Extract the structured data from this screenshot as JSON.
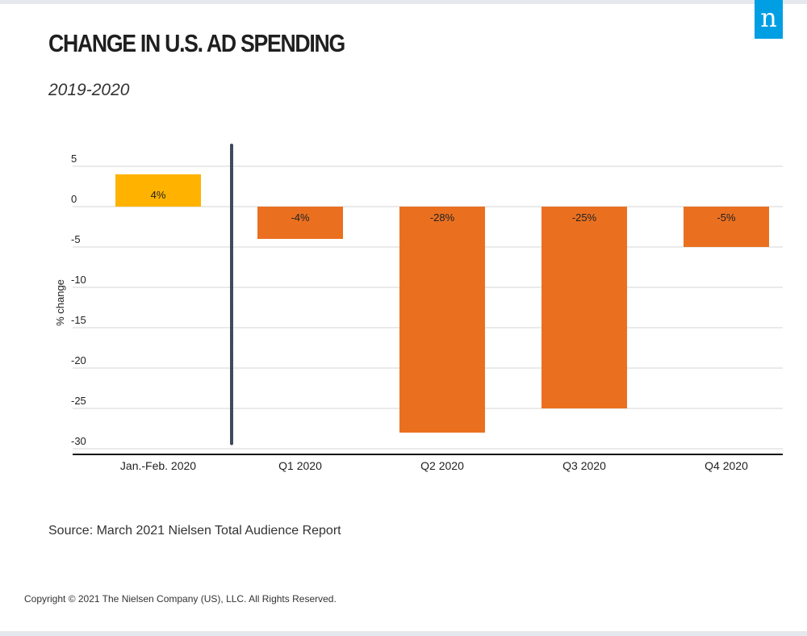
{
  "brand": {
    "logo_text": "n",
    "logo_color": "#009ee3"
  },
  "header": {
    "title": "CHANGE IN U.S. AD SPENDING",
    "subtitle": "2019-2020"
  },
  "chart_data": {
    "type": "bar",
    "categories": [
      "Jan.-Feb. 2020",
      "Q1 2020",
      "Q2 2020",
      "Q3 2020",
      "Q4 2020"
    ],
    "values": [
      4,
      -4,
      -28,
      -25,
      -5
    ],
    "data_labels": [
      "4%",
      "-4%",
      "-28%",
      "-25%",
      "-5%"
    ],
    "bar_colors": [
      "#ffb300",
      "#ea7020",
      "#ea7020",
      "#ea7020",
      "#ea7020"
    ],
    "ylabel": "% change",
    "yticks": [
      5,
      0,
      -5,
      -10,
      -15,
      -20,
      -25,
      -30
    ],
    "ylim": [
      -30,
      5
    ],
    "grid": true,
    "divider_after_category": 0
  },
  "footer": {
    "source": "Source: March 2021 Nielsen Total Audience Report",
    "copyright": "Copyright © 2021 The Nielsen Company (US), LLC. All Rights Reserved."
  }
}
